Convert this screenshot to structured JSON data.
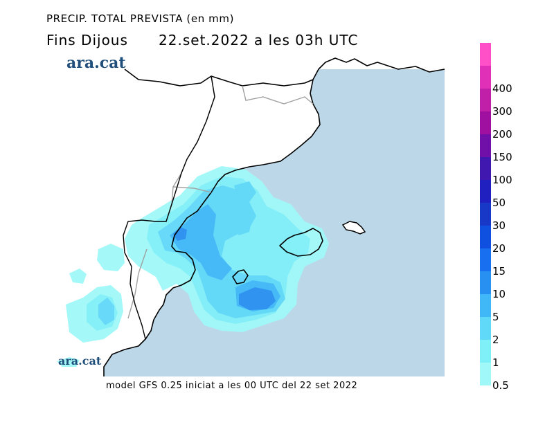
{
  "header": {
    "title": "PRECIP. TOTAL PREVISTA (en mm)",
    "subtitle": "Fins Dijous      22.set.2022 a les 03h UTC",
    "brand": "ara.cat"
  },
  "footer": {
    "text": "model GFS 0.25 iniciat a les 00 UTC del 22 set 2022"
  },
  "legend": {
    "levels": [
      {
        "label": "0.5",
        "color": "#a0f8f8"
      },
      {
        "label": "1",
        "color": "#80f0f8"
      },
      {
        "label": "2",
        "color": "#60d8f8"
      },
      {
        "label": "5",
        "color": "#40b8f8"
      },
      {
        "label": "10",
        "color": "#2890f0"
      },
      {
        "label": "15",
        "color": "#1870f0"
      },
      {
        "label": "20",
        "color": "#1050e0"
      },
      {
        "label": "30",
        "color": "#1838c8"
      },
      {
        "label": "50",
        "color": "#2020c0"
      },
      {
        "label": "100",
        "color": "#4018b0"
      },
      {
        "label": "150",
        "color": "#7010a8"
      },
      {
        "label": "200",
        "color": "#a010a0"
      },
      {
        "label": "300",
        "color": "#c020a8"
      },
      {
        "label": "400",
        "color": "#e030b8"
      },
      {
        "label": "",
        "color": "#ff50c8"
      }
    ]
  },
  "colors": {
    "sea": "#bcd8e8",
    "land": "#ffffff",
    "coast": "#000000",
    "border": "#a0a0a0"
  }
}
